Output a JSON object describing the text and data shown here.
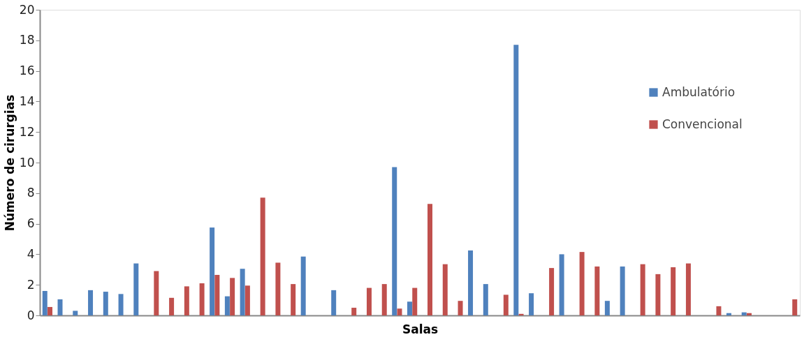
{
  "chart_data": {
    "type": "bar",
    "xlabel": "Salas",
    "ylabel": "Número de cirurgias",
    "categories": [
      null,
      null,
      null,
      null,
      null,
      null,
      null,
      null,
      null,
      null,
      null,
      null,
      null,
      null,
      null,
      null,
      null,
      null,
      null,
      null,
      null,
      null,
      null,
      null,
      null,
      null,
      null,
      null,
      null,
      null,
      null,
      null,
      null,
      null,
      null,
      null,
      null,
      null,
      null,
      null,
      null,
      null,
      null,
      null,
      null,
      null,
      null,
      null,
      null,
      null
    ],
    "series": [
      {
        "name": "Ambulatório",
        "color": "#4f81bd",
        "values": [
          1.6,
          1.05,
          0.3,
          1.65,
          1.55,
          1.4,
          3.4,
          0,
          0,
          0,
          0,
          5.75,
          1.25,
          3.05,
          0,
          0,
          0,
          3.85,
          0,
          1.65,
          0,
          0,
          0,
          9.7,
          0.9,
          0,
          0,
          null,
          4.25,
          2.05,
          0,
          17.7,
          1.45,
          0,
          4.0,
          0,
          0,
          0.95,
          3.2,
          0,
          0,
          0,
          0,
          0,
          0,
          0.15,
          0.2,
          0,
          0,
          0
        ]
      },
      {
        "name": "Convencional",
        "color": "#c0504d",
        "values": [
          0.55,
          0,
          0,
          0,
          0,
          0,
          null,
          2.9,
          1.15,
          1.9,
          2.1,
          2.65,
          2.45,
          1.95,
          7.7,
          3.45,
          2.05,
          0,
          0,
          0,
          0.5,
          1.8,
          2.05,
          0.45,
          1.8,
          7.3,
          3.35,
          0.95,
          0,
          0,
          1.35,
          0.1,
          0,
          3.1,
          0,
          4.15,
          3.2,
          0,
          0,
          3.35,
          2.7,
          3.15,
          3.4,
          0,
          0.6,
          0,
          0.15,
          null,
          0,
          1.05
        ]
      }
    ],
    "ylim": [
      0,
      20
    ],
    "yticks": [
      0,
      2,
      4,
      6,
      8,
      10,
      12,
      14,
      16,
      18,
      20
    ],
    "grid": false,
    "legend": "right"
  }
}
